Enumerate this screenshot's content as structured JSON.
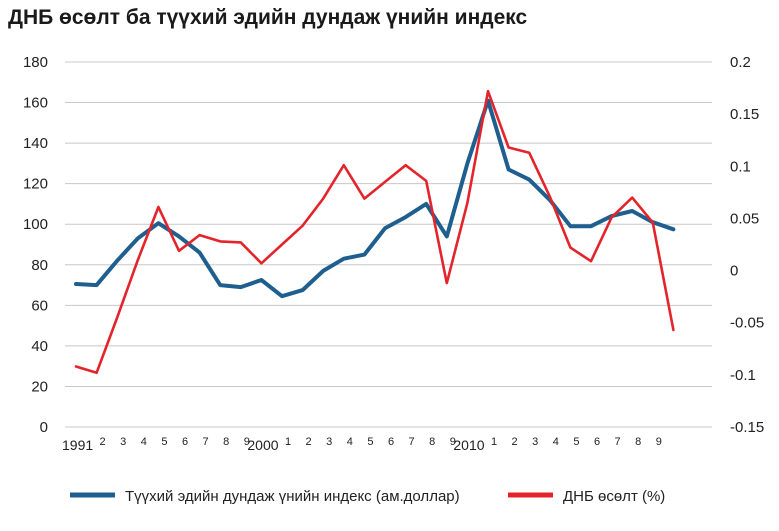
{
  "chart_data": {
    "type": "line",
    "title": "ДНБ өсөлт ба түүхий эдийн дундаж үнийн индекс",
    "categories": [
      "1991",
      "2",
      "3",
      "4",
      "5",
      "6",
      "7",
      "8",
      "9",
      "2000",
      "1",
      "2",
      "3",
      "4",
      "5",
      "6",
      "7",
      "8",
      "9",
      "2010",
      "1",
      "2",
      "3",
      "4",
      "5",
      "6",
      "7",
      "8",
      "9",
      ""
    ],
    "y_left": {
      "ylim": [
        0,
        180
      ],
      "ticks": [
        "0",
        "20",
        "40",
        "60",
        "80",
        "100",
        "120",
        "140",
        "160",
        "180"
      ]
    },
    "y_right": {
      "ylim": [
        -0.15,
        0.2
      ],
      "ticks": [
        "-0.15",
        "-0.1",
        "-0.05",
        "0",
        "0.05",
        "0.1",
        "0.15",
        "0.2"
      ]
    },
    "grid": true,
    "legend_position": "bottom",
    "series": [
      {
        "name": "Түүхий эдийн дундаж үнийн индекс (ам.доллар)",
        "axis": "left",
        "color": "#1f5f8f",
        "values": [
          70.5,
          70,
          82,
          93,
          100.5,
          94,
          86,
          70,
          69,
          72.5,
          64.5,
          67.5,
          77,
          83,
          85,
          98,
          103.5,
          110,
          94,
          130,
          161,
          127,
          122,
          112,
          99,
          99,
          104,
          106.5,
          101,
          97.5
        ]
      },
      {
        "name": "ДНБ өсөлт (%)",
        "axis": "right",
        "color": "#e3242b",
        "values": [
          -0.092,
          -0.098,
          -0.045,
          0.01,
          0.061,
          0.019,
          0.034,
          0.028,
          0.027,
          0.007,
          0.025,
          0.043,
          0.069,
          0.101,
          0.069,
          0.085,
          0.101,
          0.086,
          -0.012,
          0.065,
          0.172,
          0.118,
          0.113,
          0.071,
          0.022,
          0.009,
          0.051,
          0.07,
          0.046,
          -0.057
        ]
      }
    ]
  }
}
